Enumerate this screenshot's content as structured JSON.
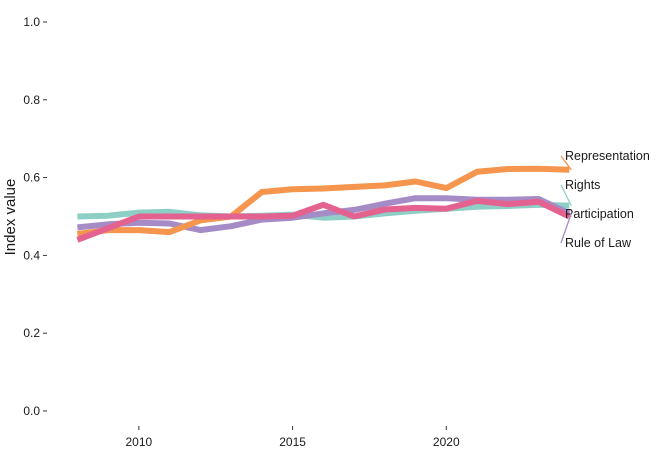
{
  "chart_data": {
    "type": "line",
    "title": "",
    "xlabel": "",
    "ylabel": "Index value",
    "xlim": [
      2007.5,
      2025
    ],
    "ylim": [
      0,
      1
    ],
    "grid": false,
    "legend": "direct-labels-right",
    "x": [
      2008,
      2009,
      2010,
      2011,
      2012,
      2013,
      2014,
      2015,
      2016,
      2017,
      2018,
      2019,
      2020,
      2021,
      2022,
      2023,
      2024
    ],
    "x_ticks": [
      2010,
      2015,
      2020
    ],
    "x_tick_labels": [
      "2010",
      "2015",
      "2020"
    ],
    "y_ticks": [
      0,
      0.2,
      0.4,
      0.6,
      0.8,
      1
    ],
    "y_tick_labels": [
      "0.0",
      "0.2",
      "0.4",
      "0.6",
      "0.8",
      "1.0"
    ],
    "series": [
      {
        "name": "Rights",
        "color": "#8ecfc5",
        "values": [
          0.5,
          0.502,
          0.51,
          0.512,
          0.503,
          0.5,
          0.502,
          0.505,
          0.497,
          0.5,
          0.508,
          0.515,
          0.52,
          0.525,
          0.527,
          0.53,
          0.528
        ]
      },
      {
        "name": "Rule of Law",
        "color": "#a58cc6",
        "values": [
          0.472,
          0.48,
          0.484,
          0.482,
          0.465,
          0.475,
          0.492,
          0.497,
          0.508,
          0.517,
          0.533,
          0.547,
          0.547,
          0.543,
          0.543,
          0.545,
          0.508
        ]
      },
      {
        "name": "Representation",
        "color": "#f5954e",
        "values": [
          0.455,
          0.465,
          0.465,
          0.46,
          0.49,
          0.5,
          0.563,
          0.57,
          0.572,
          0.576,
          0.58,
          0.59,
          0.573,
          0.615,
          0.622,
          0.623,
          0.62
        ]
      },
      {
        "name": "Participation",
        "color": "#e4628f",
        "values": [
          0.44,
          0.47,
          0.5,
          0.5,
          0.5,
          0.5,
          0.5,
          0.502,
          0.53,
          0.5,
          0.518,
          0.522,
          0.52,
          0.54,
          0.532,
          0.538,
          0.5
        ]
      }
    ],
    "label_order": [
      "Representation",
      "Rights",
      "Participation",
      "Rule of Law"
    ]
  }
}
